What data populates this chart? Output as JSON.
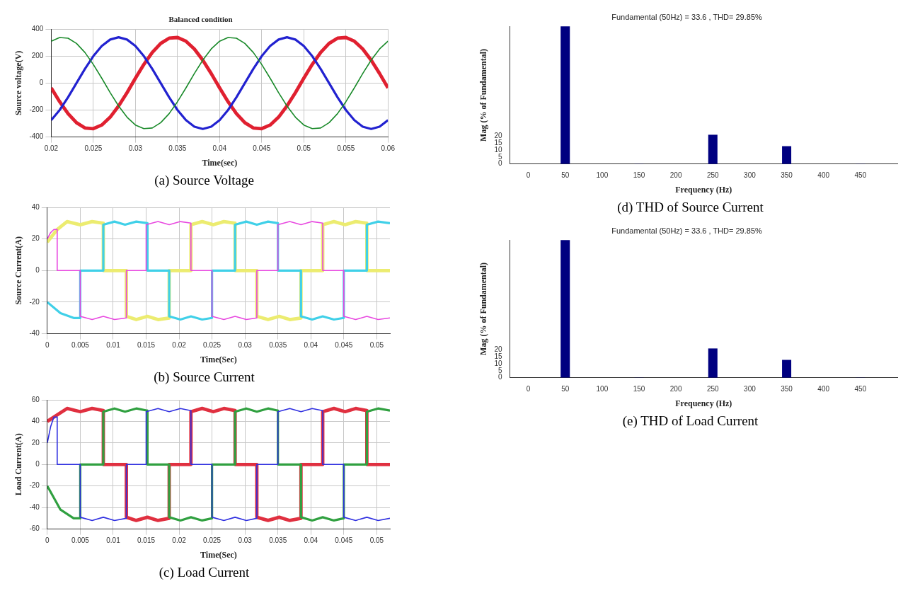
{
  "chart_data": [
    {
      "type": "line",
      "title": "Balanced condition",
      "xlabel": "Time(sec)",
      "ylabel": "Source voltage(V)",
      "annotations": [
        "(a)  Source Voltage"
      ],
      "x": [
        0.02,
        0.021,
        0.022,
        0.023,
        0.024,
        0.025,
        0.026,
        0.027,
        0.028,
        0.029,
        0.03,
        0.031,
        0.032,
        0.033,
        0.034,
        0.035,
        0.036,
        0.037,
        0.038,
        0.039,
        0.04,
        0.041,
        0.042,
        0.043,
        0.044,
        0.045,
        0.046,
        0.047,
        0.048,
        0.049,
        0.05,
        0.051,
        0.052,
        0.053,
        0.054,
        0.055,
        0.056,
        0.057,
        0.058,
        0.059,
        0.06
      ],
      "series": [
        {
          "color": "#1a8a2a",
          "values": [
            311,
            338,
            333,
            294,
            227,
            138,
            36,
            -71,
            -170,
            -253,
            -311,
            -338,
            -333,
            -294,
            -227,
            -138,
            -36,
            71,
            170,
            253,
            311,
            338,
            333,
            294,
            227,
            138,
            36,
            -71,
            -170,
            -253,
            -311,
            -338,
            -333,
            -294,
            -227,
            -138,
            -36,
            71,
            170,
            253,
            311
          ]
        },
        {
          "color": "#2222d0",
          "values": [
            -275,
            -200,
            -105,
            0,
            105,
            200,
            275,
            323,
            340,
            323,
            275,
            200,
            105,
            0,
            -105,
            -200,
            -275,
            -323,
            -340,
            -323,
            -275,
            -200,
            -105,
            0,
            105,
            200,
            275,
            323,
            340,
            323,
            275,
            200,
            105,
            0,
            -105,
            -200,
            -275,
            -323,
            -340,
            -323,
            -275
          ]
        },
        {
          "color": "#e02030",
          "values": [
            -36,
            -138,
            -227,
            -294,
            -333,
            -338,
            -311,
            -253,
            -170,
            -71,
            36,
            138,
            227,
            294,
            333,
            338,
            311,
            253,
            170,
            71,
            -36,
            -138,
            -227,
            -294,
            -333,
            -338,
            -311,
            -253,
            -170,
            -71,
            36,
            138,
            227,
            294,
            333,
            338,
            311,
            253,
            170,
            71,
            -36
          ]
        }
      ],
      "xlim": [
        0.02,
        0.06
      ],
      "xticks": [
        0.02,
        0.025,
        0.03,
        0.035,
        0.04,
        0.045,
        0.05,
        0.055,
        0.06
      ],
      "ylim": [
        -400,
        400
      ],
      "yticks": [
        -400,
        -200,
        0,
        200,
        400
      ],
      "grid": true
    },
    {
      "type": "line",
      "xlabel": "Time(Sec)",
      "ylabel": "Source Current(A)",
      "annotations": [
        "(b)  Source Current"
      ],
      "series": [
        {
          "color": "#e848e0",
          "x": [
            0,
            0.0005,
            0.001,
            0.0015,
            0.0015,
            0.005,
            0.005,
            0.0068,
            0.0085,
            0.0102,
            0.012,
            0.012,
            0.015,
            0.015,
            0.0168,
            0.0185,
            0.0202,
            0.0218,
            0.0218,
            0.025,
            0.025,
            0.0268,
            0.0285,
            0.0302,
            0.0318,
            0.0318,
            0.035,
            0.035,
            0.0368,
            0.0385,
            0.0402,
            0.0418,
            0.0418,
            0.045,
            0.045,
            0.0468,
            0.0485,
            0.0502,
            0.052
          ],
          "values": [
            20,
            24,
            26,
            26,
            0,
            0,
            -29,
            -31,
            -29,
            -31,
            -30,
            0,
            0,
            29,
            31,
            29,
            31,
            30,
            0,
            0,
            -29,
            -31,
            -29,
            -31,
            -30,
            0,
            0,
            29,
            31,
            29,
            31,
            30,
            0,
            0,
            -29,
            -31,
            -29,
            -31,
            -30
          ]
        },
        {
          "color": "#40d0e8",
          "x": [
            0,
            0.002,
            0.004,
            0.005,
            0.005,
            0.0085,
            0.0085,
            0.0102,
            0.0118,
            0.0135,
            0.0152,
            0.0152,
            0.0185,
            0.0185,
            0.0202,
            0.0218,
            0.0235,
            0.025,
            0.025,
            0.0285,
            0.0285,
            0.0302,
            0.0318,
            0.0335,
            0.035,
            0.035,
            0.0385,
            0.0385,
            0.0402,
            0.0418,
            0.0435,
            0.045,
            0.045,
            0.0485,
            0.0485,
            0.0502,
            0.052
          ],
          "values": [
            -20,
            -27,
            -30,
            -30,
            0,
            0,
            29,
            31,
            29,
            31,
            30,
            0,
            0,
            -29,
            -31,
            -29,
            -31,
            -30,
            0,
            0,
            29,
            31,
            29,
            31,
            30,
            0,
            0,
            -29,
            -31,
            -29,
            -31,
            -30,
            0,
            0,
            29,
            31,
            30
          ]
        },
        {
          "color": "#ecec70",
          "x": [
            0,
            0.0015,
            0.003,
            0.005,
            0.0068,
            0.0085,
            0.0085,
            0.012,
            0.012,
            0.0135,
            0.0152,
            0.0168,
            0.0185,
            0.0185,
            0.0218,
            0.0218,
            0.0235,
            0.0252,
            0.0268,
            0.0285,
            0.0285,
            0.0318,
            0.0318,
            0.0335,
            0.0352,
            0.0368,
            0.0385,
            0.0385,
            0.0418,
            0.0418,
            0.0435,
            0.0452,
            0.0468,
            0.0485,
            0.0485,
            0.052
          ],
          "values": [
            18,
            26,
            31,
            29,
            31,
            30,
            0,
            0,
            -29,
            -31,
            -29,
            -31,
            -30,
            0,
            0,
            29,
            31,
            29,
            31,
            30,
            0,
            0,
            -29,
            -31,
            -29,
            -31,
            -30,
            0,
            0,
            29,
            31,
            29,
            31,
            30,
            0,
            0
          ]
        }
      ],
      "xlim": [
        0,
        0.052
      ],
      "xticks": [
        0,
        0.005,
        0.01,
        0.015,
        0.02,
        0.025,
        0.03,
        0.035,
        0.04,
        0.045,
        0.05
      ],
      "ylim": [
        -40,
        40
      ],
      "yticks": [
        -40,
        -20,
        0,
        20,
        40
      ],
      "grid": true
    },
    {
      "type": "line",
      "xlabel": "Time(Sec)",
      "ylabel": "Load Current(A)",
      "annotations": [
        "(c)  Load Current"
      ],
      "series": [
        {
          "color": "#3030e0",
          "x": [
            0,
            0.0005,
            0.001,
            0.0015,
            0.0015,
            0.005,
            0.005,
            0.0068,
            0.0085,
            0.0102,
            0.012,
            0.012,
            0.015,
            0.015,
            0.0168,
            0.0185,
            0.0202,
            0.0218,
            0.0218,
            0.025,
            0.025,
            0.0268,
            0.0285,
            0.0302,
            0.0318,
            0.0318,
            0.035,
            0.035,
            0.0368,
            0.0385,
            0.0402,
            0.0418,
            0.0418,
            0.045,
            0.045,
            0.0468,
            0.0485,
            0.0502,
            0.052
          ],
          "values": [
            20,
            35,
            44,
            44,
            0,
            0,
            -49,
            -52,
            -49,
            -52,
            -50,
            0,
            0,
            49,
            52,
            49,
            52,
            50,
            0,
            0,
            -49,
            -52,
            -49,
            -52,
            -50,
            0,
            0,
            49,
            52,
            49,
            52,
            50,
            0,
            0,
            -49,
            -52,
            -49,
            -52,
            -50
          ]
        },
        {
          "color": "#30a040",
          "x": [
            0,
            0.002,
            0.004,
            0.005,
            0.005,
            0.0085,
            0.0085,
            0.0102,
            0.0118,
            0.0135,
            0.0152,
            0.0152,
            0.0185,
            0.0185,
            0.0202,
            0.0218,
            0.0235,
            0.025,
            0.025,
            0.0285,
            0.0285,
            0.0302,
            0.0318,
            0.0335,
            0.035,
            0.035,
            0.0385,
            0.0385,
            0.0402,
            0.0418,
            0.0435,
            0.045,
            0.045,
            0.0485,
            0.0485,
            0.0502,
            0.052
          ],
          "values": [
            -20,
            -42,
            -50,
            -50,
            0,
            0,
            49,
            52,
            49,
            52,
            50,
            0,
            0,
            -49,
            -52,
            -49,
            -52,
            -50,
            0,
            0,
            49,
            52,
            49,
            52,
            50,
            0,
            0,
            -49,
            -52,
            -49,
            -52,
            -50,
            0,
            0,
            49,
            52,
            50
          ]
        },
        {
          "color": "#e03040",
          "x": [
            0,
            0.0015,
            0.003,
            0.005,
            0.0068,
            0.0085,
            0.0085,
            0.012,
            0.012,
            0.0135,
            0.0152,
            0.0168,
            0.0185,
            0.0185,
            0.0218,
            0.0218,
            0.0235,
            0.0252,
            0.0268,
            0.0285,
            0.0285,
            0.0318,
            0.0318,
            0.0335,
            0.0352,
            0.0368,
            0.0385,
            0.0385,
            0.0418,
            0.0418,
            0.0435,
            0.0452,
            0.0468,
            0.0485,
            0.0485,
            0.052
          ],
          "values": [
            40,
            46,
            52,
            49,
            52,
            50,
            0,
            0,
            -49,
            -52,
            -49,
            -52,
            -50,
            0,
            0,
            49,
            52,
            49,
            52,
            50,
            0,
            0,
            -49,
            -52,
            -49,
            -52,
            -50,
            0,
            0,
            49,
            52,
            49,
            52,
            50,
            0,
            0
          ]
        }
      ],
      "xlim": [
        0,
        0.052
      ],
      "xticks": [
        0,
        0.005,
        0.01,
        0.015,
        0.02,
        0.025,
        0.03,
        0.035,
        0.04,
        0.045,
        0.05
      ],
      "ylim": [
        -60,
        60
      ],
      "yticks": [
        -60,
        -40,
        -20,
        0,
        20,
        40,
        60
      ],
      "grid": true
    },
    {
      "type": "bar",
      "title": "Fundamental (50Hz) = 33.6 , THD= 29.85%",
      "xlabel": "Frequency (Hz)",
      "ylabel": "Mag (% of Fundamental)",
      "annotations": [
        "(d)  THD of Source Current"
      ],
      "x": [
        50,
        150,
        250,
        350,
        450
      ],
      "values": [
        100,
        0.1,
        21.2,
        12.9,
        0.1
      ],
      "color": "#000080",
      "xlim": [
        -25,
        500
      ],
      "xticks": [
        0,
        50,
        100,
        150,
        200,
        250,
        300,
        350,
        400,
        450
      ],
      "ylim": [
        0,
        100
      ],
      "yticks": [
        0,
        5,
        10,
        15,
        20
      ]
    },
    {
      "type": "bar",
      "title": "Fundamental (50Hz) = 33.6 , THD= 29.85%",
      "xlabel": "Frequency (Hz)",
      "ylabel": "Mag (% of Fundamental)",
      "annotations": [
        "(e)  THD of Load Current"
      ],
      "x": [
        50,
        150,
        250,
        350,
        450
      ],
      "values": [
        100,
        0.1,
        21.2,
        12.9,
        0.1
      ],
      "color": "#000080",
      "xlim": [
        -25,
        500
      ],
      "xticks": [
        0,
        50,
        100,
        150,
        200,
        250,
        300,
        350,
        400,
        450
      ],
      "ylim": [
        0,
        100
      ],
      "yticks": [
        0,
        5,
        10,
        15,
        20
      ]
    }
  ]
}
